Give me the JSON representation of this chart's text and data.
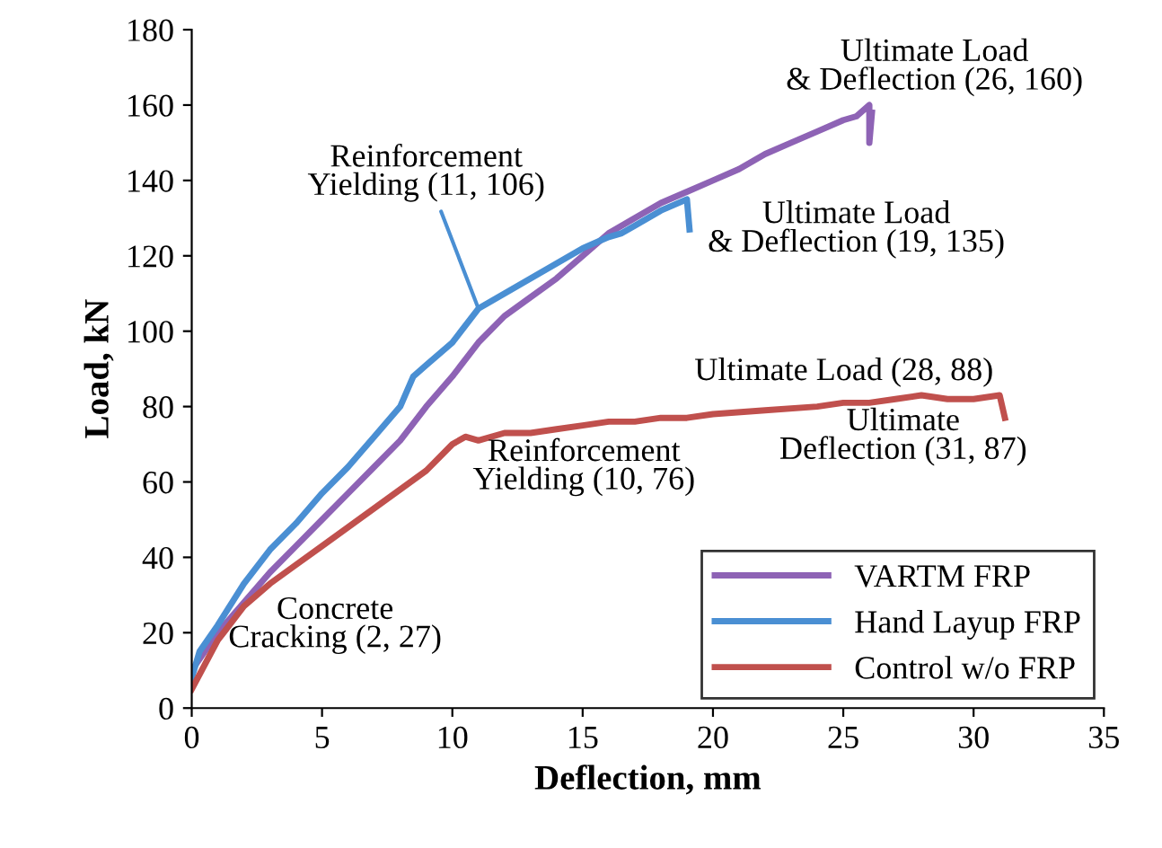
{
  "chart_data": {
    "type": "line",
    "xlabel": "Deflection, mm",
    "ylabel": "Load, kN",
    "xlim": [
      0,
      35
    ],
    "xticks": [
      0,
      5,
      10,
      15,
      20,
      25,
      30,
      35
    ],
    "ylim": [
      0,
      180
    ],
    "yticks": [
      0,
      20,
      40,
      60,
      80,
      100,
      120,
      140,
      160,
      180
    ],
    "grid": false,
    "legend": "bottom right",
    "marker": "none",
    "line_style": "solid",
    "series": [
      {
        "name": "VARTM FRP",
        "color": "#8e63b5",
        "x": [
          0,
          0.5,
          1,
          2,
          3,
          4,
          5,
          6,
          7,
          8,
          9,
          10,
          11,
          12,
          13,
          14,
          15,
          16,
          17,
          18,
          19,
          20,
          21,
          22,
          23,
          24,
          25,
          25.5,
          26,
          26,
          26.1
        ],
        "values": [
          10,
          15,
          20,
          28,
          36,
          43,
          50,
          57,
          64,
          71,
          80,
          88,
          97,
          104,
          109,
          114,
          120,
          126,
          130,
          134,
          137,
          140,
          143,
          147,
          150,
          153,
          156,
          157,
          160,
          150,
          158
        ]
      },
      {
        "name": "Hand Layup FRP",
        "color": "#4a8fd3",
        "x": [
          0,
          0.3,
          1,
          2,
          3,
          4,
          5,
          6,
          7,
          8,
          8.5,
          9,
          10,
          11,
          12,
          13,
          14,
          15,
          16,
          16.5,
          17,
          18,
          19,
          19.1
        ],
        "values": [
          8,
          15,
          22,
          33,
          42,
          49,
          57,
          64,
          72,
          80,
          88,
          91,
          97,
          106,
          110,
          114,
          118,
          122,
          125,
          126,
          128,
          132,
          135,
          127
        ]
      },
      {
        "name": "Control w/o FRP",
        "color": "#c0504d",
        "x": [
          0,
          1,
          2,
          3,
          4,
          5,
          6,
          7,
          8,
          9,
          10,
          10.5,
          11,
          12,
          13,
          14,
          15,
          16,
          17,
          18,
          19,
          20,
          22,
          24,
          25,
          26,
          27,
          28,
          29,
          30,
          31,
          31.2
        ],
        "values": [
          5,
          18,
          27,
          33,
          38,
          43,
          48,
          53,
          58,
          63,
          70,
          72,
          71,
          73,
          73,
          74,
          75,
          76,
          76,
          77,
          77,
          78,
          79,
          80,
          81,
          81,
          82,
          83,
          82,
          82,
          83,
          77
        ]
      }
    ],
    "annotations": [
      {
        "text": "Ultimate Load\n& Deflection (26, 160)",
        "x": 26,
        "y": 160
      },
      {
        "text": "Reinforcement\nYielding (11, 106)",
        "x": 11,
        "y": 106
      },
      {
        "text": "Ultimate Load\n& Deflection (19, 135)",
        "x": 19,
        "y": 135
      },
      "Ultimate Load (28, 88)",
      "Ultimate\nDeflection (31, 87)",
      "Reinforcement\nYielding (10, 76)",
      {
        "text": "Concrete\nCracking (2, 27)",
        "x": 2,
        "y": 27
      }
    ]
  }
}
